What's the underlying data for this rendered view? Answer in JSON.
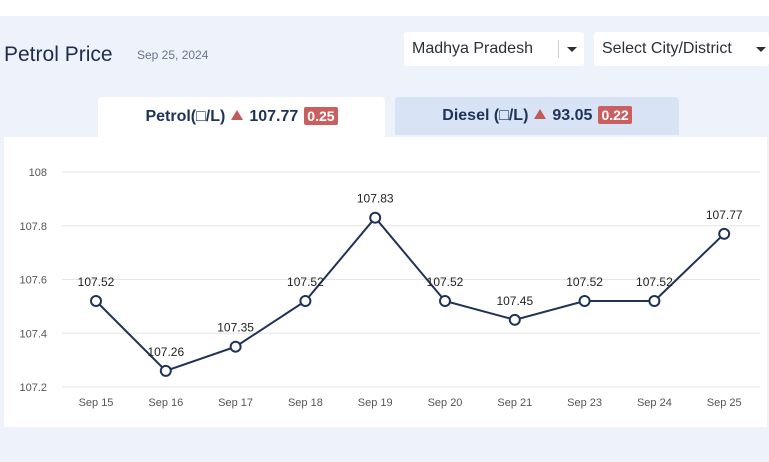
{
  "header": {
    "title": "Petrol Price",
    "date": "Sep 25, 2024"
  },
  "filters": {
    "state": "Madhya Pradesh",
    "city": "Select City/District"
  },
  "tabs": [
    {
      "label": "Petrol(□/L)",
      "price": "107.77",
      "change": "0.25",
      "active": true
    },
    {
      "label": "Diesel (□/L)",
      "price": "93.05",
      "change": "0.22",
      "active": false
    }
  ],
  "colors": {
    "line": "#1f3356",
    "up_arrow": "#c35a5a",
    "badge": "#c9605f",
    "grid": "#e6e6e6"
  },
  "chart_data": {
    "type": "line",
    "categories": [
      "Sep 15",
      "Sep 16",
      "Sep 17",
      "Sep 18",
      "Sep 19",
      "Sep 20",
      "Sep 21",
      "Sep 23",
      "Sep 24",
      "Sep 25"
    ],
    "series": [
      {
        "values": [
          107.52,
          107.26,
          107.35,
          107.52,
          107.83,
          107.52,
          107.45,
          107.52,
          107.52,
          107.77
        ]
      }
    ],
    "data_labels": [
      "107.52",
      "107.26",
      "107.35",
      "107.52",
      "107.83",
      "107.52",
      "107.45",
      "107.52",
      "107.52",
      "107.77"
    ],
    "y_ticks": [
      "108",
      "107.8",
      "107.6",
      "107.4",
      "107.2"
    ],
    "ylim": [
      107.2,
      108
    ],
    "grid": true,
    "title": "",
    "xlabel": "",
    "ylabel": ""
  }
}
